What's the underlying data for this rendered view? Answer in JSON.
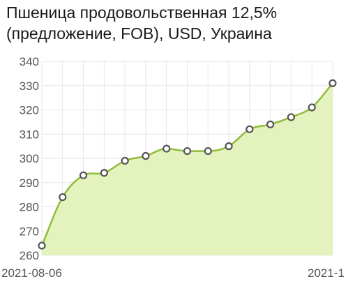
{
  "chart_data": {
    "type": "area",
    "title": "Пшеница продовольственная 12,5% (предложение, FOB), USD, Украина",
    "x_tick_labels": [
      "2021-08-06",
      "2021-1"
    ],
    "y_ticks": [
      260,
      270,
      280,
      290,
      300,
      310,
      320,
      330,
      340
    ],
    "ylim": [
      260,
      340
    ],
    "grid": true,
    "smooth": true,
    "colors": {
      "line": "#8fbc3a",
      "fill": "#e4f3bd",
      "marker_stroke": "#555555",
      "marker_fill": "#ffffff",
      "grid": "#e6e6e6"
    },
    "series": [
      {
        "values": [
          264,
          284,
          293,
          294,
          299,
          301,
          304,
          303,
          303,
          305,
          312,
          314,
          317,
          321,
          331
        ]
      }
    ]
  }
}
